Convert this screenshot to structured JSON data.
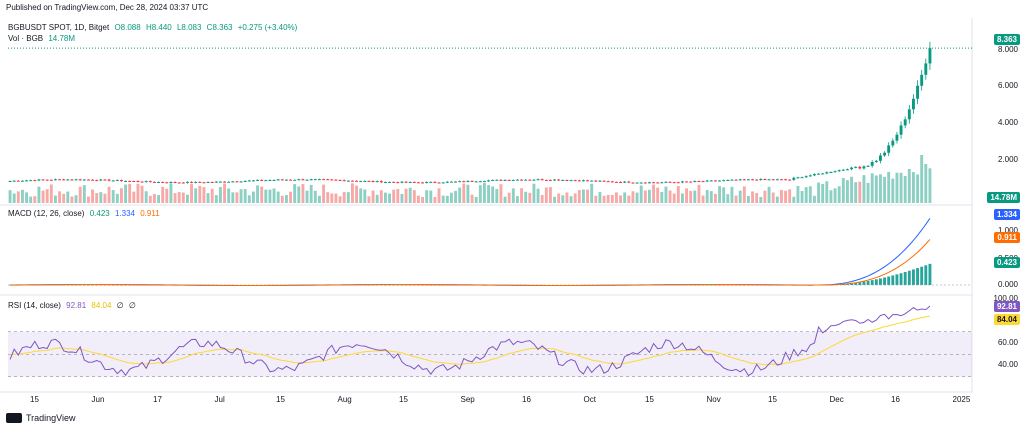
{
  "published": "Published on TradingView.com, Dec 28, 2024 03:37 UTC",
  "price_header": {
    "symbol": "BGBUSDT SPOT, 1D, Bitget",
    "o": "O8.088",
    "h": "H8.440",
    "l": "L8.083",
    "c": "C8.363",
    "chg": "+0.275 (+3.40%)"
  },
  "vol_header": {
    "label": "Vol · BGB",
    "value": "14.78M"
  },
  "macd_header": {
    "label": "MACD (12, 26, close)",
    "hist": "0.423",
    "macd": "1.334",
    "signal": "0.911"
  },
  "rsi_header": {
    "label": "RSI (14, close)",
    "rsi": "92.81",
    "ma": "84.04",
    "x1": "∅",
    "x2": "∅"
  },
  "price_axis": [
    "8.000",
    "6.000",
    "4.000",
    "2.000"
  ],
  "macd_axis": [
    "1.000",
    "0.500",
    "0.000"
  ],
  "rsi_axis": [
    "100.00",
    "60.00",
    "40.00"
  ],
  "badges": {
    "price": "8.363",
    "vol": "14.78M",
    "macd_line": "1.334",
    "signal": "0.911",
    "hist": "0.423",
    "rsi": "92.81",
    "rsi_ma": "84.04"
  },
  "x_labels": [
    "15",
    "Jun",
    "17",
    "Jul",
    "15",
    "Aug",
    "15",
    "Sep",
    "16",
    "Oct",
    "15",
    "Nov",
    "15",
    "Dec",
    "16",
    "2025"
  ],
  "footer": "TradingView",
  "colors": {
    "up": "#089981",
    "down": "#f23645",
    "macd": "#2962ff",
    "signal": "#ff6d00",
    "rsi": "#7e57c2",
    "rsi_ma": "#fdd835"
  },
  "chart_data": {
    "type": "candlestick",
    "price_range": [
      0,
      9
    ],
    "candles_sampled": [
      {
        "date": "2024-05-15",
        "close": 1.05
      },
      {
        "date": "2024-06-01",
        "close": 1.15
      },
      {
        "date": "2024-06-17",
        "close": 1.08
      },
      {
        "date": "2024-07-01",
        "close": 1.12
      },
      {
        "date": "2024-07-15",
        "close": 1.02
      },
      {
        "date": "2024-08-01",
        "close": 1.0
      },
      {
        "date": "2024-08-15",
        "close": 0.95
      },
      {
        "date": "2024-09-01",
        "close": 0.98
      },
      {
        "date": "2024-09-16",
        "close": 0.97
      },
      {
        "date": "2024-10-01",
        "close": 1.05
      },
      {
        "date": "2024-10-15",
        "close": 1.08
      },
      {
        "date": "2024-11-01",
        "close": 1.2
      },
      {
        "date": "2024-11-15",
        "close": 1.45
      },
      {
        "date": "2024-12-01",
        "close": 1.7
      },
      {
        "date": "2024-12-10",
        "close": 2.8
      },
      {
        "date": "2024-12-16",
        "close": 3.3
      },
      {
        "date": "2024-12-22",
        "close": 4.2
      },
      {
        "date": "2024-12-25",
        "close": 6.2
      },
      {
        "date": "2024-12-28",
        "close": 8.363
      }
    ],
    "macd_range": [
      -0.1,
      1.4
    ],
    "rsi_range": [
      20,
      100
    ],
    "rsi_bands": [
      30,
      50,
      70
    ]
  }
}
